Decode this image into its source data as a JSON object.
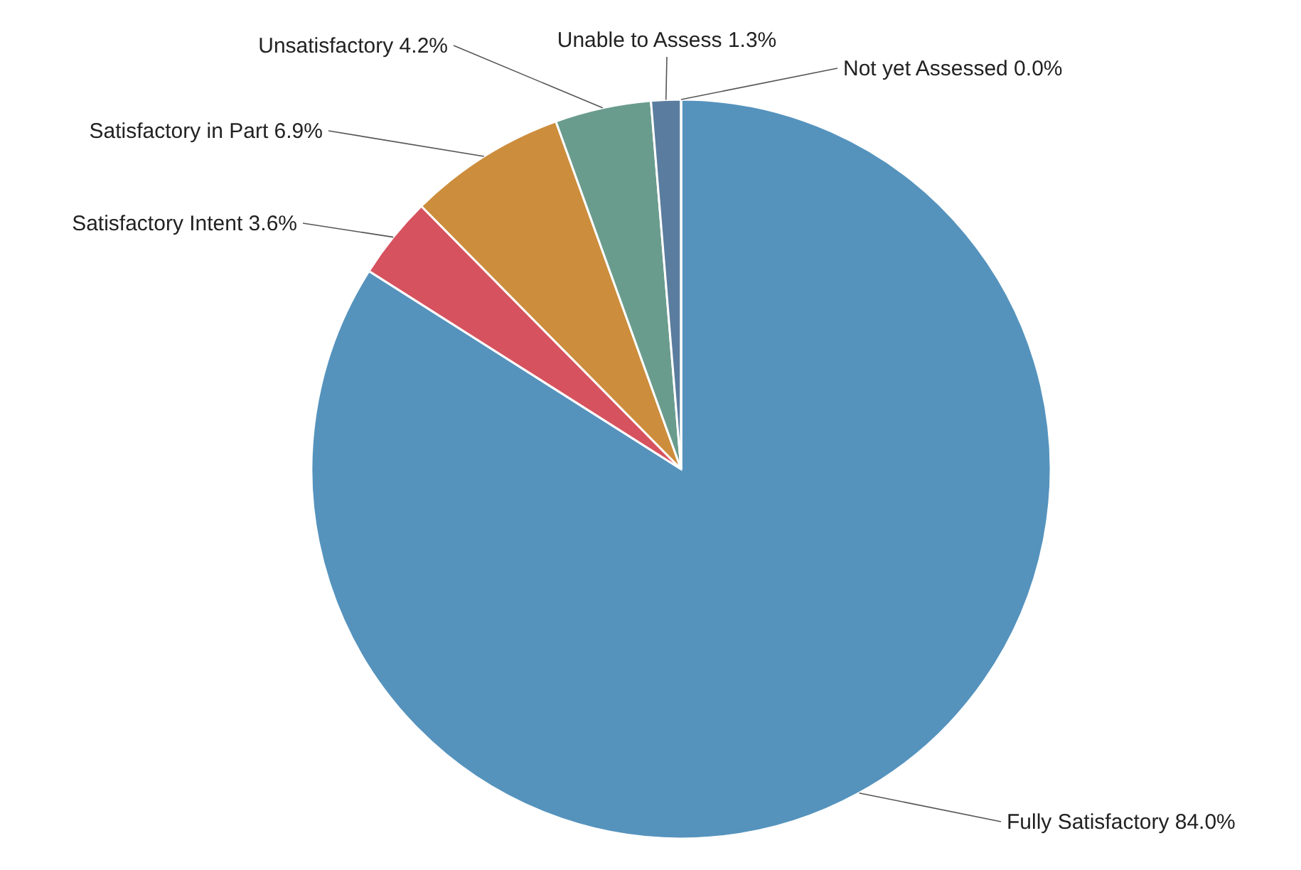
{
  "chart_data": {
    "type": "pie",
    "categories": [
      "Fully Satisfactory",
      "Satisfactory Intent",
      "Satisfactory in Part",
      "Unsatisfactory",
      "Unable to Assess",
      "Not yet Assessed"
    ],
    "values": [
      84.0,
      3.6,
      6.9,
      4.2,
      1.3,
      0.0
    ],
    "value_labels": [
      "84.0%",
      "3.6%",
      "6.9%",
      "4.2%",
      "1.3%",
      "0.0%"
    ],
    "colors": [
      "#5593bd",
      "#d6525f",
      "#cc8d3c",
      "#6a9c8e",
      "#5a7c9e",
      "#8fa9c4"
    ]
  }
}
